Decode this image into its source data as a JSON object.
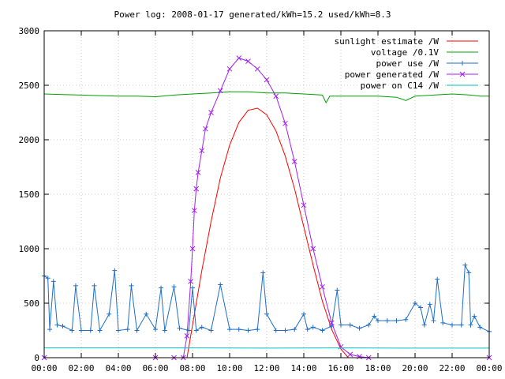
{
  "chart_data": {
    "type": "line",
    "title": "Power log: 2008-01-17 generated/kWh=15.2 used/kWh=8.3",
    "xlabel": "",
    "ylabel": "",
    "xlim": [
      0,
      24
    ],
    "ylim": [
      0,
      3000
    ],
    "x_ticks": [
      0,
      2,
      4,
      6,
      8,
      10,
      12,
      14,
      16,
      18,
      20,
      22,
      24
    ],
    "x_tick_labels": [
      "00:00",
      "02:00",
      "04:00",
      "06:00",
      "08:00",
      "10:00",
      "12:00",
      "14:00",
      "16:00",
      "18:00",
      "20:00",
      "22:00",
      "00:00"
    ],
    "y_ticks": [
      0,
      500,
      1000,
      1500,
      2000,
      2500,
      3000
    ],
    "y_tick_labels": [
      "0",
      "500",
      "1000",
      "1500",
      "2000",
      "2500",
      "3000"
    ],
    "grid": true,
    "legend_position": "top-right",
    "series": [
      {
        "name": "sunlight estimate /W",
        "color": "#ff0000",
        "marker": "none",
        "x": [
          7.7,
          8.0,
          8.5,
          9.0,
          9.5,
          10.0,
          10.5,
          11.0,
          11.5,
          12.0,
          12.5,
          13.0,
          13.5,
          14.0,
          14.5,
          15.0,
          15.5,
          16.0,
          16.4
        ],
        "values": [
          0,
          300,
          800,
          1250,
          1650,
          1950,
          2160,
          2270,
          2290,
          2230,
          2080,
          1850,
          1550,
          1200,
          850,
          520,
          260,
          80,
          0
        ]
      },
      {
        "name": "voltage /0.1V",
        "color": "#00a000",
        "marker": "none",
        "x": [
          0,
          1,
          2,
          3,
          4,
          5,
          6,
          7,
          8,
          9,
          10,
          11,
          12,
          13,
          14,
          15,
          15.2,
          15.4,
          16,
          17,
          18,
          19,
          19.5,
          20,
          21,
          22,
          23,
          23.5,
          24
        ],
        "values": [
          2420,
          2415,
          2410,
          2405,
          2400,
          2400,
          2395,
          2410,
          2420,
          2430,
          2440,
          2440,
          2430,
          2430,
          2420,
          2410,
          2340,
          2400,
          2400,
          2400,
          2400,
          2390,
          2360,
          2400,
          2410,
          2420,
          2410,
          2400,
          2400
        ]
      },
      {
        "name": "power use /W",
        "color": "#1f6fc8",
        "marker": "plus",
        "x": [
          0,
          0.2,
          0.3,
          0.5,
          0.7,
          1.0,
          1.5,
          1.7,
          2.0,
          2.5,
          2.7,
          3.0,
          3.5,
          3.8,
          4.0,
          4.5,
          4.7,
          5.0,
          5.5,
          6.0,
          6.3,
          6.5,
          7.0,
          7.3,
          7.8,
          8.0,
          8.2,
          8.5,
          9.0,
          9.5,
          10.0,
          10.5,
          11.0,
          11.5,
          11.8,
          12.0,
          12.5,
          13.0,
          13.5,
          14.0,
          14.2,
          14.5,
          15.0,
          15.5,
          15.8,
          16.0,
          16.5,
          17.0,
          17.5,
          17.8,
          18.0,
          18.5,
          19.0,
          19.5,
          20.0,
          20.3,
          20.5,
          20.8,
          21.0,
          21.2,
          21.5,
          22.0,
          22.5,
          22.7,
          22.9,
          23.0,
          23.2,
          23.5,
          24.0
        ],
        "values": [
          750,
          730,
          260,
          700,
          300,
          290,
          250,
          660,
          250,
          250,
          660,
          250,
          400,
          800,
          250,
          260,
          660,
          250,
          400,
          260,
          640,
          250,
          650,
          270,
          250,
          640,
          250,
          280,
          250,
          670,
          260,
          260,
          250,
          260,
          780,
          400,
          250,
          250,
          260,
          400,
          260,
          280,
          250,
          290,
          620,
          300,
          300,
          270,
          300,
          380,
          340,
          340,
          340,
          350,
          500,
          460,
          300,
          490,
          340,
          720,
          320,
          300,
          300,
          850,
          780,
          300,
          380,
          280,
          240
        ]
      },
      {
        "name": "power generated /W",
        "color": "#a020f0",
        "marker": "cross",
        "x": [
          0,
          6.0,
          7.0,
          7.5,
          7.7,
          7.9,
          8.0,
          8.1,
          8.2,
          8.3,
          8.5,
          8.7,
          9.0,
          9.5,
          10.0,
          10.5,
          11.0,
          11.5,
          12.0,
          12.5,
          13.0,
          13.5,
          14.0,
          14.5,
          15.0,
          15.5,
          16.0,
          16.5,
          17.0,
          17.5,
          24.0
        ],
        "values": [
          0,
          0,
          0,
          0,
          200,
          700,
          1000,
          1350,
          1550,
          1700,
          1900,
          2100,
          2250,
          2450,
          2650,
          2750,
          2720,
          2650,
          2550,
          2400,
          2150,
          1800,
          1400,
          1000,
          650,
          320,
          100,
          30,
          10,
          0,
          0
        ]
      },
      {
        "name": "power on C14 /W",
        "color": "#00c0c0",
        "marker": "none",
        "x": [
          0,
          4,
          8,
          12,
          16,
          20,
          24
        ],
        "values": [
          90,
          90,
          90,
          88,
          90,
          88,
          88
        ]
      }
    ]
  }
}
